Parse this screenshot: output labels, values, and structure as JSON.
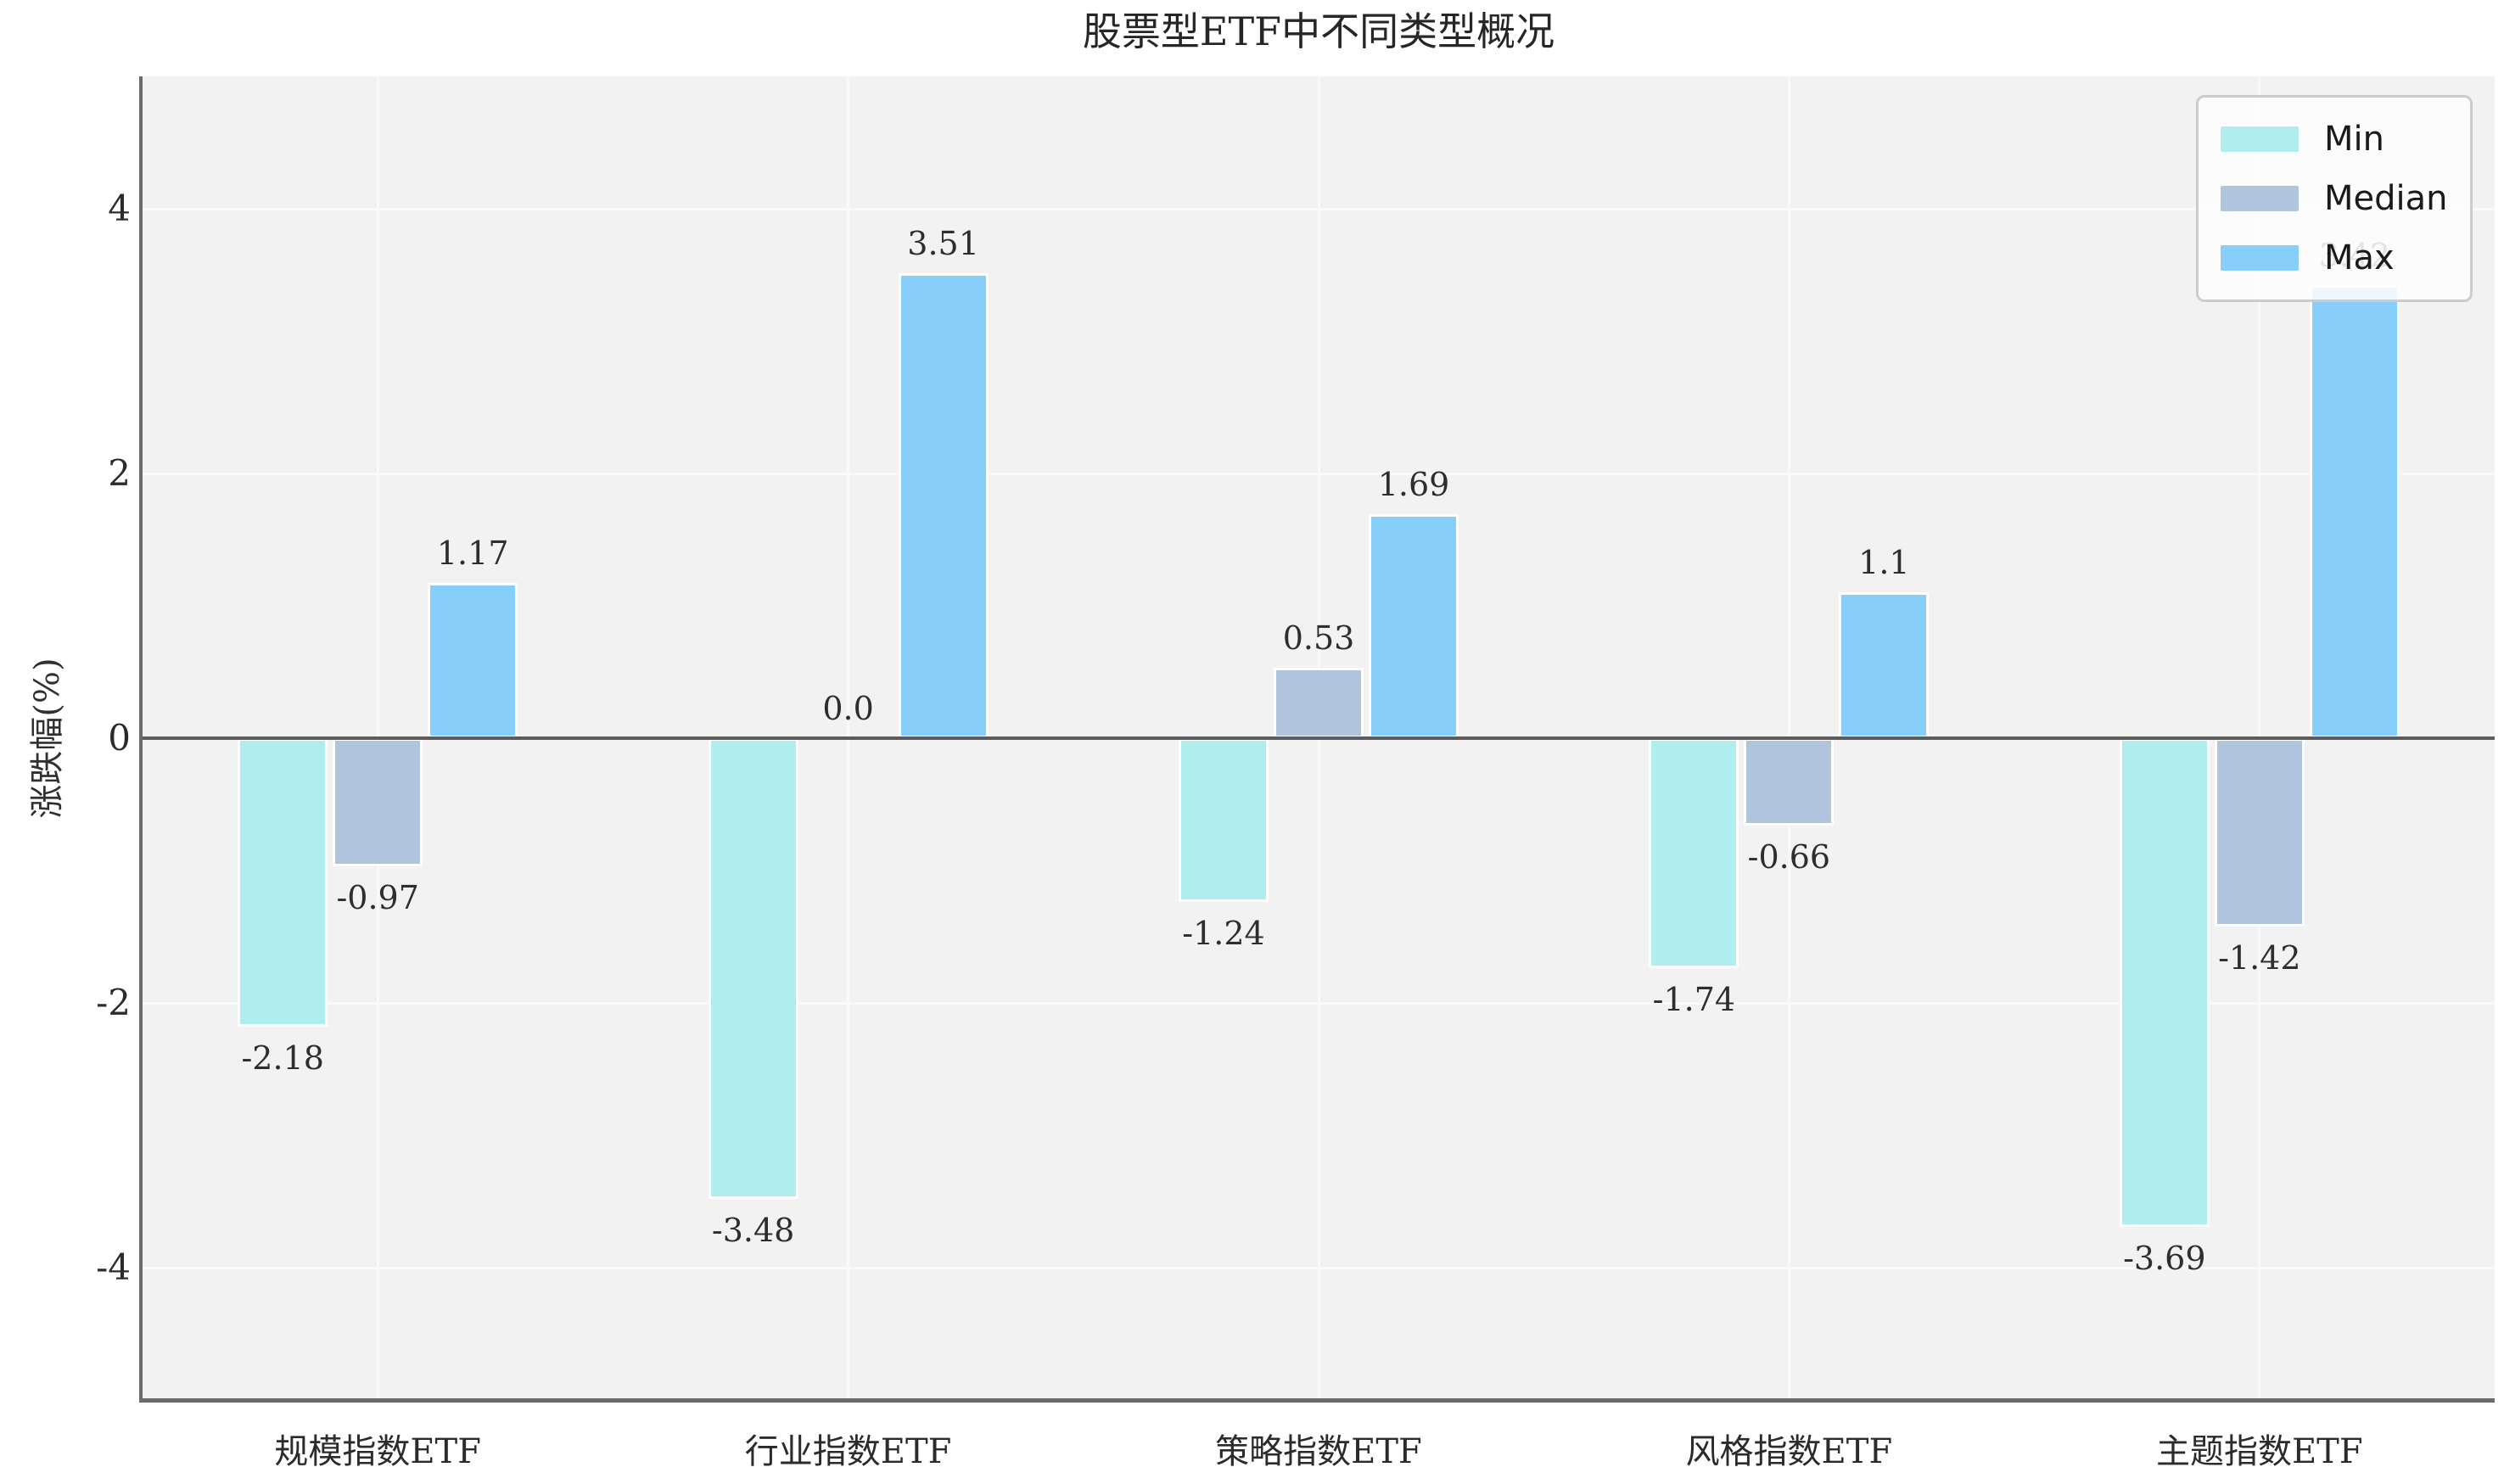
{
  "title": "股票型ETF中不同类型概况",
  "colors": {
    "figure_background": "#ffffff",
    "plot_background": "#f2f2f2",
    "gridline": "#fafafa",
    "spine": "#6b6b6b",
    "zero_line": "#5c5c5c",
    "text": "#2b2b2b",
    "legend_border": "#cccccc",
    "legend_background": "#fdfdfd",
    "min_bar": "#afeeee",
    "median_bar": "#b0c4de",
    "max_bar": "#87cefa"
  },
  "chart_data": {
    "type": "bar",
    "title": "股票型ETF中不同类型概况",
    "xlabel": "",
    "ylabel": "涨跌幅(%)",
    "categories": [
      "规模指数ETF",
      "行业指数ETF",
      "策略指数ETF",
      "风格指数ETF",
      "主题指数ETF"
    ],
    "series": [
      {
        "name": "Min",
        "color": "#afeeee",
        "values": [
          -2.18,
          -3.48,
          -1.24,
          -1.74,
          -3.69
        ],
        "labels": [
          "-2.18",
          "-3.48",
          "-1.24",
          "-1.74",
          "-3.69"
        ]
      },
      {
        "name": "Median",
        "color": "#b0c4de",
        "values": [
          -0.97,
          0.0,
          0.53,
          -0.66,
          -1.42
        ],
        "labels": [
          "-0.97",
          "0.0",
          "0.53",
          "-0.66",
          "-1.42"
        ]
      },
      {
        "name": "Max",
        "color": "#87cefa",
        "values": [
          1.17,
          3.51,
          1.69,
          1.1,
          3.42
        ],
        "labels": [
          "1.17",
          "3.51",
          "1.69",
          "1.1",
          "3.42"
        ]
      }
    ],
    "yticks": [
      {
        "value": 4,
        "label": "4"
      },
      {
        "value": 2,
        "label": "2"
      },
      {
        "value": 0,
        "label": "0"
      },
      {
        "value": -2,
        "label": "-2"
      },
      {
        "value": -4,
        "label": "-4"
      }
    ],
    "ylim": [
      -5,
      5
    ],
    "grid": true,
    "legend_position": "upper right",
    "legend_entries": [
      "Min",
      "Median",
      "Max"
    ]
  }
}
